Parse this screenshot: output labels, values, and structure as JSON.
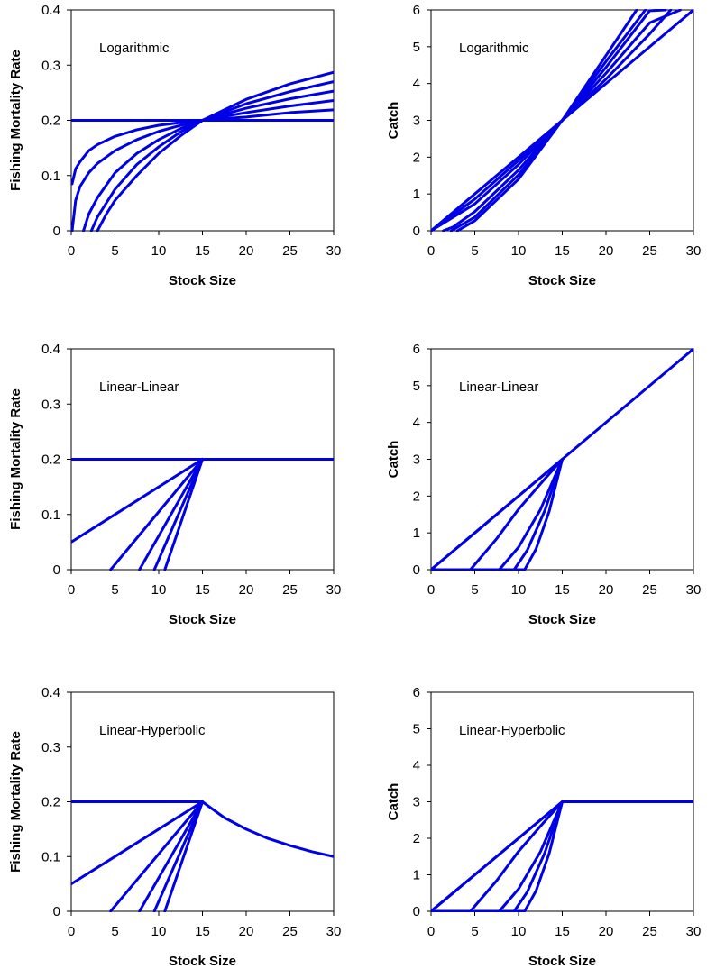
{
  "colors": {
    "line": "#0000e6",
    "axes": "#000000",
    "background": "#ffffff"
  },
  "chart_data": [
    {
      "type": "line",
      "panel": "top-left",
      "label": "Logarithmic",
      "xlabel": "Stock Size",
      "ylabel": "Fishing Mortality Rate",
      "xlim": [
        0,
        30
      ],
      "ylim": [
        0,
        0.4
      ],
      "grid": false,
      "xticks": [
        "0",
        "5",
        "10",
        "15",
        "20",
        "25",
        "30"
      ],
      "yticks": [
        "0",
        "0.1",
        "0.2",
        "0.3",
        "0.4"
      ],
      "series": [
        {
          "x": [
            0,
            30
          ],
          "y": [
            0.2,
            0.2
          ]
        },
        {
          "x": [
            0.1,
            0.5,
            1,
            2,
            3,
            5,
            7.5,
            10,
            12.5,
            15,
            20,
            25,
            30
          ],
          "y": [
            0.085,
            0.112,
            0.125,
            0.145,
            0.156,
            0.171,
            0.183,
            0.191,
            0.196,
            0.2,
            0.206,
            0.214,
            0.219
          ]
        },
        {
          "x": [
            0.1,
            0.5,
            1,
            2,
            3,
            5,
            7.5,
            10,
            12.5,
            15,
            20,
            25,
            30
          ],
          "y": [
            0.0,
            0.055,
            0.08,
            0.105,
            0.122,
            0.145,
            0.165,
            0.18,
            0.191,
            0.2,
            0.214,
            0.226,
            0.236
          ]
        },
        {
          "x": [
            1.4,
            2,
            3,
            5,
            7.5,
            10,
            12.5,
            15,
            20,
            25,
            30
          ],
          "y": [
            0.0,
            0.03,
            0.06,
            0.105,
            0.14,
            0.165,
            0.185,
            0.2,
            0.222,
            0.239,
            0.253
          ]
        },
        {
          "x": [
            2.3,
            3,
            4,
            5,
            7.5,
            10,
            12.5,
            15,
            20,
            25,
            30
          ],
          "y": [
            0.0,
            0.025,
            0.05,
            0.075,
            0.12,
            0.152,
            0.179,
            0.2,
            0.23,
            0.252,
            0.27
          ]
        },
        {
          "x": [
            3.0,
            4,
            5,
            7.5,
            10,
            12.5,
            15,
            20,
            25,
            30
          ],
          "y": [
            0.0,
            0.03,
            0.055,
            0.1,
            0.14,
            0.172,
            0.2,
            0.238,
            0.266,
            0.287
          ]
        }
      ]
    },
    {
      "type": "line",
      "panel": "top-right",
      "label": "Logarithmic",
      "xlabel": "Stock Size",
      "ylabel": "Catch",
      "xlim": [
        0,
        30
      ],
      "ylim": [
        0,
        6
      ],
      "grid": false,
      "xticks": [
        "0",
        "5",
        "10",
        "15",
        "20",
        "25",
        "30"
      ],
      "yticks": [
        "0",
        "1",
        "2",
        "3",
        "4",
        "5",
        "6"
      ],
      "series": [
        {
          "x": [
            0,
            30
          ],
          "y": [
            0,
            6
          ]
        },
        {
          "x": [
            0,
            5,
            10,
            15,
            20,
            25,
            27.4
          ],
          "y": [
            0,
            0.86,
            1.91,
            3.0,
            4.12,
            5.35,
            6.0
          ]
        },
        {
          "x": [
            0,
            5,
            10,
            15,
            20,
            25,
            28.5
          ],
          "y": [
            0,
            0.73,
            1.8,
            3.0,
            4.28,
            5.65,
            6.0
          ]
        },
        {
          "x": [
            1.4,
            2.5,
            5,
            10,
            15,
            20,
            25,
            26.8
          ],
          "y": [
            0,
            0.1,
            0.52,
            1.65,
            3.0,
            4.44,
            5.98,
            6.0
          ]
        },
        {
          "x": [
            2.3,
            5,
            10,
            15,
            20,
            24.5
          ],
          "y": [
            0,
            0.37,
            1.52,
            3.0,
            4.6,
            6.0
          ]
        },
        {
          "x": [
            3.0,
            5,
            10,
            15,
            20,
            23.5
          ],
          "y": [
            0,
            0.27,
            1.4,
            3.0,
            4.76,
            6.0
          ]
        }
      ]
    },
    {
      "type": "line",
      "panel": "middle-left",
      "label": "Linear-Linear",
      "xlabel": "Stock Size",
      "ylabel": "Fishing Mortality Rate",
      "xlim": [
        0,
        30
      ],
      "ylim": [
        0,
        0.4
      ],
      "grid": false,
      "xticks": [
        "0",
        "5",
        "10",
        "15",
        "20",
        "25",
        "30"
      ],
      "yticks": [
        "0",
        "0.1",
        "0.2",
        "0.3",
        "0.4"
      ],
      "series": [
        {
          "x": [
            0,
            15,
            30
          ],
          "y": [
            0.2,
            0.2,
            0.2
          ]
        },
        {
          "x": [
            0,
            15
          ],
          "y": [
            0.05,
            0.2
          ]
        },
        {
          "x": [
            4.5,
            15
          ],
          "y": [
            0.0,
            0.2
          ]
        },
        {
          "x": [
            7.8,
            15
          ],
          "y": [
            0.0,
            0.2
          ]
        },
        {
          "x": [
            9.5,
            15
          ],
          "y": [
            0.0,
            0.2
          ]
        },
        {
          "x": [
            10.7,
            15
          ],
          "y": [
            0.0,
            0.2
          ]
        }
      ]
    },
    {
      "type": "line",
      "panel": "middle-right",
      "label": "Linear-Linear",
      "xlabel": "Stock Size",
      "ylabel": "Catch",
      "xlim": [
        0,
        30
      ],
      "ylim": [
        0,
        6
      ],
      "grid": false,
      "xticks": [
        "0",
        "5",
        "10",
        "15",
        "20",
        "25",
        "30"
      ],
      "yticks": [
        "0",
        "1",
        "2",
        "3",
        "4",
        "5",
        "6"
      ],
      "series": [
        {
          "x": [
            0,
            30
          ],
          "y": [
            0,
            6
          ]
        },
        {
          "x": [
            0,
            15
          ],
          "y": [
            0,
            3
          ]
        },
        {
          "x": [
            0,
            4.5,
            7.5,
            10,
            12.5,
            15
          ],
          "y": [
            0,
            0,
            0.84,
            1.64,
            2.33,
            3.0
          ]
        },
        {
          "x": [
            0,
            7.8,
            10,
            12.5,
            15
          ],
          "y": [
            0,
            0,
            0.61,
            1.63,
            3.0
          ]
        },
        {
          "x": [
            0,
            9.5,
            11,
            13,
            15
          ],
          "y": [
            0,
            0,
            0.53,
            1.6,
            3.0
          ]
        },
        {
          "x": [
            0,
            10.7,
            12,
            13.5,
            15
          ],
          "y": [
            0,
            0,
            0.56,
            1.58,
            3.0
          ]
        }
      ]
    },
    {
      "type": "line",
      "panel": "bottom-left",
      "label": "Linear-Hyperbolic",
      "xlabel": "Stock Size",
      "ylabel": "Fishing Mortality Rate",
      "xlim": [
        0,
        30
      ],
      "ylim": [
        0,
        0.4
      ],
      "grid": false,
      "xticks": [
        "0",
        "5",
        "10",
        "15",
        "20",
        "25",
        "30"
      ],
      "yticks": [
        "0",
        "0.1",
        "0.2",
        "0.3",
        "0.4"
      ],
      "series": [
        {
          "x": [
            0,
            15,
            17.5,
            20,
            22.5,
            25,
            27.5,
            30
          ],
          "y": [
            0.2,
            0.2,
            0.171,
            0.15,
            0.133,
            0.12,
            0.109,
            0.1
          ]
        },
        {
          "x": [
            0,
            15
          ],
          "y": [
            0.05,
            0.2
          ]
        },
        {
          "x": [
            4.5,
            15
          ],
          "y": [
            0.0,
            0.2
          ]
        },
        {
          "x": [
            7.8,
            15
          ],
          "y": [
            0.0,
            0.2
          ]
        },
        {
          "x": [
            9.5,
            15
          ],
          "y": [
            0.0,
            0.2
          ]
        },
        {
          "x": [
            10.7,
            15
          ],
          "y": [
            0.0,
            0.2
          ]
        }
      ]
    },
    {
      "type": "line",
      "panel": "bottom-right",
      "label": "Linear-Hyperbolic",
      "xlabel": "Stock Size",
      "ylabel": "Catch",
      "xlim": [
        0,
        30
      ],
      "ylim": [
        0,
        6
      ],
      "grid": false,
      "xticks": [
        "0",
        "5",
        "10",
        "15",
        "20",
        "25",
        "30"
      ],
      "yticks": [
        "0",
        "1",
        "2",
        "3",
        "4",
        "5",
        "6"
      ],
      "series": [
        {
          "x": [
            0,
            15,
            30
          ],
          "y": [
            0,
            3,
            3
          ]
        },
        {
          "x": [
            0,
            15
          ],
          "y": [
            0,
            3
          ]
        },
        {
          "x": [
            0,
            4.5,
            7.5,
            10,
            12.5,
            15
          ],
          "y": [
            0,
            0,
            0.84,
            1.64,
            2.33,
            3.0
          ]
        },
        {
          "x": [
            0,
            7.8,
            10,
            12.5,
            15
          ],
          "y": [
            0,
            0,
            0.61,
            1.63,
            3.0
          ]
        },
        {
          "x": [
            0,
            9.5,
            11,
            13,
            15
          ],
          "y": [
            0,
            0,
            0.53,
            1.6,
            3.0
          ]
        },
        {
          "x": [
            0,
            10.7,
            12,
            13.5,
            15
          ],
          "y": [
            0,
            0,
            0.56,
            1.58,
            3.0
          ]
        }
      ]
    }
  ]
}
